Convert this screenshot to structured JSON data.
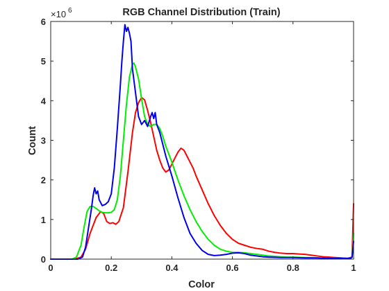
{
  "chart_data": {
    "type": "line",
    "title": "RGB Channel Distribution (Train)",
    "xlabel": "Color",
    "ylabel": "Count",
    "y_multiplier_label": "×10",
    "y_multiplier_exponent": "6",
    "xlim": [
      0,
      1
    ],
    "ylim": [
      0,
      6
    ],
    "x_ticks": [
      0,
      0.2,
      0.4,
      0.6,
      0.8,
      1
    ],
    "x_tick_labels": [
      "0",
      "0.2",
      "0.4",
      "0.6",
      "0.8",
      "1"
    ],
    "y_ticks": [
      0,
      1,
      2,
      3,
      4,
      5,
      6
    ],
    "y_tick_labels": [
      "0",
      "1",
      "2",
      "3",
      "4",
      "5",
      "6"
    ],
    "grid": false,
    "series": [
      {
        "color": "#ff0000",
        "points": [
          [
            0,
            0
          ],
          [
            0.08,
            0
          ],
          [
            0.1,
            0.05
          ],
          [
            0.115,
            0.25
          ],
          [
            0.13,
            0.65
          ],
          [
            0.15,
            1.05
          ],
          [
            0.165,
            1.2
          ],
          [
            0.175,
            1.15
          ],
          [
            0.185,
            0.95
          ],
          [
            0.195,
            0.9
          ],
          [
            0.205,
            0.92
          ],
          [
            0.215,
            0.88
          ],
          [
            0.225,
            0.95
          ],
          [
            0.24,
            1.3
          ],
          [
            0.255,
            2.2
          ],
          [
            0.27,
            3.2
          ],
          [
            0.28,
            3.7
          ],
          [
            0.29,
            3.95
          ],
          [
            0.3,
            4.08
          ],
          [
            0.31,
            4.02
          ],
          [
            0.32,
            3.75
          ],
          [
            0.33,
            3.45
          ],
          [
            0.34,
            3.1
          ],
          [
            0.35,
            2.75
          ],
          [
            0.36,
            2.5
          ],
          [
            0.37,
            2.3
          ],
          [
            0.38,
            2.2
          ],
          [
            0.39,
            2.25
          ],
          [
            0.4,
            2.4
          ],
          [
            0.41,
            2.55
          ],
          [
            0.42,
            2.7
          ],
          [
            0.43,
            2.8
          ],
          [
            0.44,
            2.75
          ],
          [
            0.45,
            2.6
          ],
          [
            0.46,
            2.45
          ],
          [
            0.47,
            2.3
          ],
          [
            0.48,
            2.1
          ],
          [
            0.5,
            1.75
          ],
          [
            0.52,
            1.4
          ],
          [
            0.54,
            1.1
          ],
          [
            0.56,
            0.85
          ],
          [
            0.58,
            0.65
          ],
          [
            0.6,
            0.5
          ],
          [
            0.62,
            0.4
          ],
          [
            0.64,
            0.35
          ],
          [
            0.66,
            0.3
          ],
          [
            0.68,
            0.27
          ],
          [
            0.7,
            0.25
          ],
          [
            0.72,
            0.2
          ],
          [
            0.74,
            0.17
          ],
          [
            0.76,
            0.15
          ],
          [
            0.78,
            0.14
          ],
          [
            0.8,
            0.14
          ],
          [
            0.82,
            0.13
          ],
          [
            0.84,
            0.12
          ],
          [
            0.86,
            0.1
          ],
          [
            0.88,
            0.08
          ],
          [
            0.9,
            0.06
          ],
          [
            0.92,
            0.05
          ],
          [
            0.94,
            0.04
          ],
          [
            0.96,
            0.03
          ],
          [
            0.98,
            0.02
          ],
          [
            0.995,
            0.05
          ],
          [
            1,
            1.4
          ]
        ]
      },
      {
        "color": "#00ee00",
        "points": [
          [
            0,
            0
          ],
          [
            0.07,
            0
          ],
          [
            0.085,
            0.05
          ],
          [
            0.1,
            0.35
          ],
          [
            0.11,
            0.8
          ],
          [
            0.12,
            1.2
          ],
          [
            0.13,
            1.33
          ],
          [
            0.14,
            1.33
          ],
          [
            0.15,
            1.28
          ],
          [
            0.16,
            1.22
          ],
          [
            0.17,
            1.18
          ],
          [
            0.18,
            1.17
          ],
          [
            0.19,
            1.17
          ],
          [
            0.2,
            1.18
          ],
          [
            0.21,
            1.25
          ],
          [
            0.22,
            1.5
          ],
          [
            0.23,
            2.1
          ],
          [
            0.24,
            3.0
          ],
          [
            0.25,
            3.9
          ],
          [
            0.26,
            4.6
          ],
          [
            0.27,
            4.92
          ],
          [
            0.275,
            4.95
          ],
          [
            0.28,
            4.85
          ],
          [
            0.29,
            4.55
          ],
          [
            0.3,
            4.05
          ],
          [
            0.31,
            3.6
          ],
          [
            0.32,
            3.4
          ],
          [
            0.33,
            3.35
          ],
          [
            0.34,
            3.4
          ],
          [
            0.35,
            3.4
          ],
          [
            0.36,
            3.3
          ],
          [
            0.37,
            3.1
          ],
          [
            0.38,
            2.85
          ],
          [
            0.4,
            2.45
          ],
          [
            0.42,
            2.0
          ],
          [
            0.44,
            1.6
          ],
          [
            0.46,
            1.25
          ],
          [
            0.48,
            0.95
          ],
          [
            0.5,
            0.7
          ],
          [
            0.52,
            0.5
          ],
          [
            0.54,
            0.35
          ],
          [
            0.56,
            0.25
          ],
          [
            0.58,
            0.2
          ],
          [
            0.6,
            0.17
          ],
          [
            0.62,
            0.17
          ],
          [
            0.64,
            0.16
          ],
          [
            0.66,
            0.14
          ],
          [
            0.68,
            0.12
          ],
          [
            0.7,
            0.1
          ],
          [
            0.72,
            0.08
          ],
          [
            0.74,
            0.07
          ],
          [
            0.76,
            0.06
          ],
          [
            0.78,
            0.05
          ],
          [
            0.8,
            0.05
          ],
          [
            0.84,
            0.04
          ],
          [
            0.88,
            0.03
          ],
          [
            0.92,
            0.02
          ],
          [
            0.96,
            0.02
          ],
          [
            0.99,
            0.02
          ],
          [
            0.995,
            0.05
          ],
          [
            1,
            0.65
          ]
        ]
      },
      {
        "color": "#0000ee",
        "points": [
          [
            0,
            0
          ],
          [
            0.09,
            0
          ],
          [
            0.105,
            0.05
          ],
          [
            0.115,
            0.3
          ],
          [
            0.125,
            0.8
          ],
          [
            0.135,
            1.3
          ],
          [
            0.14,
            1.6
          ],
          [
            0.145,
            1.8
          ],
          [
            0.15,
            1.65
          ],
          [
            0.155,
            1.72
          ],
          [
            0.16,
            1.5
          ],
          [
            0.17,
            1.35
          ],
          [
            0.18,
            1.38
          ],
          [
            0.19,
            1.45
          ],
          [
            0.2,
            1.65
          ],
          [
            0.21,
            2.3
          ],
          [
            0.22,
            3.3
          ],
          [
            0.23,
            4.4
          ],
          [
            0.235,
            5.0
          ],
          [
            0.24,
            5.5
          ],
          [
            0.245,
            5.92
          ],
          [
            0.25,
            5.75
          ],
          [
            0.255,
            5.85
          ],
          [
            0.26,
            5.7
          ],
          [
            0.265,
            5.5
          ],
          [
            0.27,
            4.8
          ],
          [
            0.28,
            4.2
          ],
          [
            0.29,
            3.6
          ],
          [
            0.3,
            3.4
          ],
          [
            0.31,
            3.5
          ],
          [
            0.32,
            3.35
          ],
          [
            0.33,
            3.6
          ],
          [
            0.335,
            3.7
          ],
          [
            0.34,
            3.55
          ],
          [
            0.345,
            3.7
          ],
          [
            0.35,
            3.4
          ],
          [
            0.36,
            3.2
          ],
          [
            0.37,
            2.9
          ],
          [
            0.38,
            2.6
          ],
          [
            0.4,
            2.1
          ],
          [
            0.42,
            1.55
          ],
          [
            0.44,
            1.05
          ],
          [
            0.46,
            0.65
          ],
          [
            0.48,
            0.4
          ],
          [
            0.5,
            0.22
          ],
          [
            0.52,
            0.12
          ],
          [
            0.54,
            0.09
          ],
          [
            0.56,
            0.1
          ],
          [
            0.58,
            0.12
          ],
          [
            0.6,
            0.15
          ],
          [
            0.62,
            0.16
          ],
          [
            0.64,
            0.14
          ],
          [
            0.66,
            0.1
          ],
          [
            0.68,
            0.08
          ],
          [
            0.7,
            0.06
          ],
          [
            0.72,
            0.05
          ],
          [
            0.76,
            0.04
          ],
          [
            0.8,
            0.04
          ],
          [
            0.84,
            0.03
          ],
          [
            0.88,
            0.03
          ],
          [
            0.92,
            0.02
          ],
          [
            0.96,
            0.02
          ],
          [
            0.99,
            0.02
          ],
          [
            0.995,
            0.05
          ],
          [
            1,
            0.45
          ]
        ]
      }
    ]
  }
}
